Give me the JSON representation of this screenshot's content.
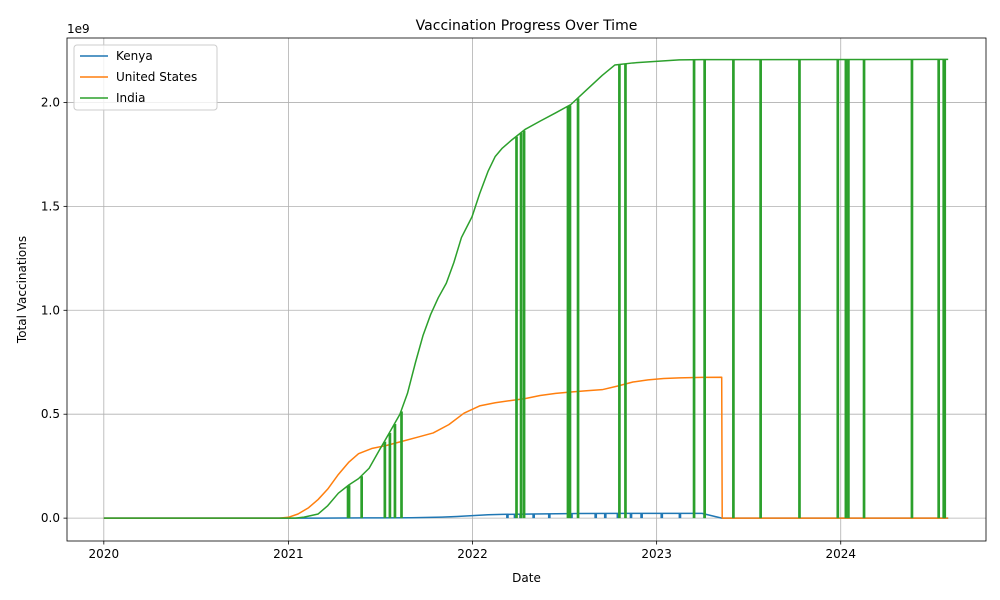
{
  "chart_data": {
    "type": "line",
    "title": "Vaccination Progress Over Time",
    "xlabel": "Date",
    "ylabel": "Total Vaccinations",
    "y_offset_label": "1e9",
    "xlim": [
      "2019-10-20",
      "2024-10-15"
    ],
    "ylim": [
      -0.11,
      2.31
    ],
    "x_ticks": [
      {
        "date": "2020-01-01",
        "label": "2020"
      },
      {
        "date": "2021-01-01",
        "label": "2021"
      },
      {
        "date": "2022-01-01",
        "label": "2022"
      },
      {
        "date": "2023-01-01",
        "label": "2023"
      },
      {
        "date": "2024-01-01",
        "label": "2024"
      }
    ],
    "y_ticks": [
      {
        "value": 0.0,
        "label": "0.0"
      },
      {
        "value": 0.5,
        "label": "0.5"
      },
      {
        "value": 1.0,
        "label": "1.0"
      },
      {
        "value": 1.5,
        "label": "1.5"
      },
      {
        "value": 2.0,
        "label": "2.0"
      }
    ],
    "grid": true,
    "legend_position": "top-left",
    "series": [
      {
        "name": "Kenya",
        "color": "#1f77b4",
        "points": [
          [
            "2020-01-01",
            0.0
          ],
          [
            "2021-03-05",
            0.0
          ],
          [
            "2021-06-01",
            0.001
          ],
          [
            "2021-09-01",
            0.002
          ],
          [
            "2021-11-01",
            0.005
          ],
          [
            "2021-12-01",
            0.008
          ],
          [
            "2022-01-01",
            0.012
          ],
          [
            "2022-02-01",
            0.016
          ],
          [
            "2022-03-01",
            0.018
          ],
          [
            "2022-05-01",
            0.02
          ],
          [
            "2022-08-01",
            0.022
          ],
          [
            "2022-11-01",
            0.023
          ],
          [
            "2023-03-01",
            0.023
          ],
          [
            "2023-04-01",
            0.023
          ],
          [
            "2023-05-10",
            0.0
          ],
          [
            "2024-08-01",
            0.0
          ]
        ],
        "drops": [
          "2022-03-10",
          "2022-03-25",
          "2022-04-05",
          "2022-05-01",
          "2022-06-01",
          "2022-07-15",
          "2022-09-01",
          "2022-09-20",
          "2022-10-15",
          "2022-11-10",
          "2022-12-01",
          "2023-01-10",
          "2023-02-15",
          "2023-04-05"
        ]
      },
      {
        "name": "United States",
        "color": "#ff7f0e",
        "points": [
          [
            "2020-01-01",
            0.0
          ],
          [
            "2020-12-14",
            0.0
          ],
          [
            "2021-01-01",
            0.004
          ],
          [
            "2021-01-20",
            0.02
          ],
          [
            "2021-02-10",
            0.05
          ],
          [
            "2021-03-01",
            0.09
          ],
          [
            "2021-03-20",
            0.14
          ],
          [
            "2021-04-10",
            0.21
          ],
          [
            "2021-05-01",
            0.27
          ],
          [
            "2021-05-20",
            0.31
          ],
          [
            "2021-06-15",
            0.335
          ],
          [
            "2021-07-15",
            0.35
          ],
          [
            "2021-08-15",
            0.37
          ],
          [
            "2021-09-15",
            0.39
          ],
          [
            "2021-10-15",
            0.41
          ],
          [
            "2021-11-15",
            0.45
          ],
          [
            "2021-12-15",
            0.505
          ],
          [
            "2022-01-15",
            0.54
          ],
          [
            "2022-02-15",
            0.555
          ],
          [
            "2022-03-15",
            0.565
          ],
          [
            "2022-04-15",
            0.575
          ],
          [
            "2022-05-15",
            0.59
          ],
          [
            "2022-06-15",
            0.6
          ],
          [
            "2022-07-15",
            0.607
          ],
          [
            "2022-08-15",
            0.613
          ],
          [
            "2022-09-15",
            0.618
          ],
          [
            "2022-10-15",
            0.635
          ],
          [
            "2022-11-15",
            0.655
          ],
          [
            "2022-12-15",
            0.665
          ],
          [
            "2023-01-15",
            0.672
          ],
          [
            "2023-02-15",
            0.675
          ],
          [
            "2023-04-01",
            0.677
          ],
          [
            "2023-05-10",
            0.678
          ],
          [
            "2023-05-11",
            0.0
          ],
          [
            "2024-08-01",
            0.0
          ]
        ],
        "drops": []
      },
      {
        "name": "India",
        "color": "#2ca02c",
        "points": [
          [
            "2020-01-01",
            0.0
          ],
          [
            "2021-01-15",
            0.0
          ],
          [
            "2021-02-01",
            0.005
          ],
          [
            "2021-03-01",
            0.02
          ],
          [
            "2021-03-20",
            0.06
          ],
          [
            "2021-04-10",
            0.12
          ],
          [
            "2021-05-01",
            0.16
          ],
          [
            "2021-05-20",
            0.19
          ],
          [
            "2021-06-10",
            0.24
          ],
          [
            "2021-07-01",
            0.33
          ],
          [
            "2021-07-20",
            0.41
          ],
          [
            "2021-08-10",
            0.5
          ],
          [
            "2021-08-25",
            0.6
          ],
          [
            "2021-09-10",
            0.75
          ],
          [
            "2021-09-25",
            0.88
          ],
          [
            "2021-10-10",
            0.98
          ],
          [
            "2021-10-25",
            1.06
          ],
          [
            "2021-11-10",
            1.13
          ],
          [
            "2021-11-25",
            1.23
          ],
          [
            "2021-12-10",
            1.35
          ],
          [
            "2021-12-31",
            1.45
          ],
          [
            "2022-01-15",
            1.56
          ],
          [
            "2022-02-01",
            1.67
          ],
          [
            "2022-02-15",
            1.74
          ],
          [
            "2022-03-01",
            1.78
          ],
          [
            "2022-03-20",
            1.82
          ],
          [
            "2022-04-15",
            1.87
          ],
          [
            "2022-05-15",
            1.91
          ],
          [
            "2022-06-15",
            1.95
          ],
          [
            "2022-07-15",
            1.99
          ],
          [
            "2022-08-15",
            2.06
          ],
          [
            "2022-09-15",
            2.13
          ],
          [
            "2022-10-10",
            2.18
          ],
          [
            "2022-11-15",
            2.19
          ],
          [
            "2023-01-15",
            2.2
          ],
          [
            "2023-02-15",
            2.205
          ],
          [
            "2023-04-01",
            2.206
          ],
          [
            "2024-08-01",
            2.207
          ]
        ],
        "drops": [
          "2021-04-28",
          "2021-04-30",
          "2021-05-25",
          "2021-07-10",
          "2021-07-20",
          "2021-07-30",
          "2021-08-12",
          "2022-03-28",
          "2022-04-06",
          "2022-04-12",
          "2022-07-08",
          "2022-07-12",
          "2022-07-28",
          "2022-10-18",
          "2022-10-30",
          "2023-03-15",
          "2023-04-05",
          "2023-06-01",
          "2023-07-25",
          "2023-10-10",
          "2023-12-25",
          "2024-01-10",
          "2024-01-15",
          "2024-02-15",
          "2024-05-20",
          "2024-07-12",
          "2024-07-22",
          "2024-07-24"
        ]
      }
    ]
  }
}
